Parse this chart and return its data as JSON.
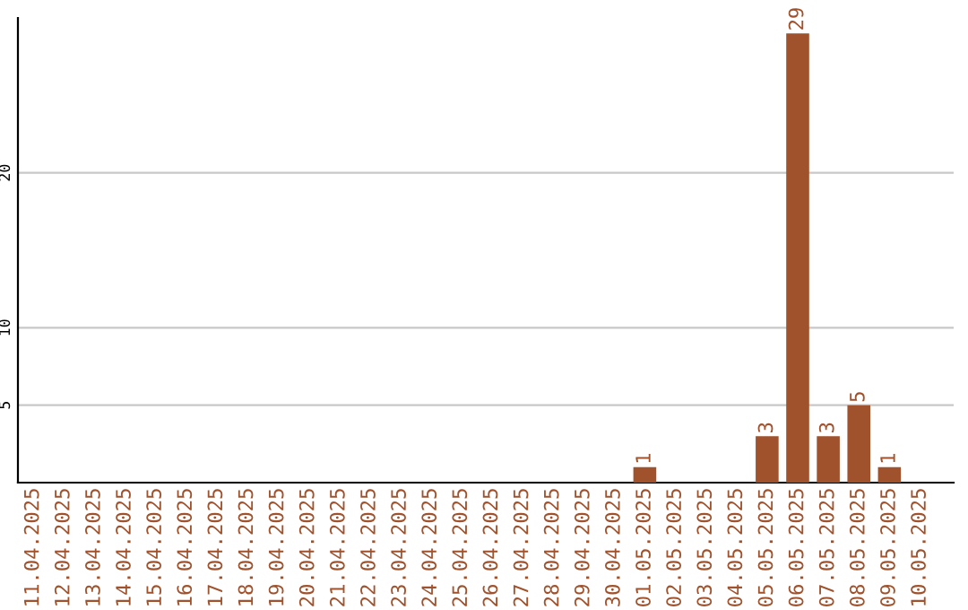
{
  "chart_data": {
    "type": "bar",
    "categories": [
      "11.04.2025",
      "12.04.2025",
      "13.04.2025",
      "14.04.2025",
      "15.04.2025",
      "16.04.2025",
      "17.04.2025",
      "18.04.2025",
      "19.04.2025",
      "20.04.2025",
      "21.04.2025",
      "22.04.2025",
      "23.04.2025",
      "24.04.2025",
      "25.04.2025",
      "26.04.2025",
      "27.04.2025",
      "28.04.2025",
      "29.04.2025",
      "30.04.2025",
      "01.05.2025",
      "02.05.2025",
      "03.05.2025",
      "04.05.2025",
      "05.05.2025",
      "06.05.2025",
      "07.05.2025",
      "08.05.2025",
      "09.05.2025",
      "10.05.2025"
    ],
    "values": [
      0,
      0,
      0,
      0,
      0,
      0,
      0,
      0,
      0,
      0,
      0,
      0,
      0,
      0,
      0,
      0,
      0,
      0,
      0,
      0,
      1,
      0,
      0,
      0,
      3,
      29,
      3,
      5,
      1,
      0
    ],
    "value_labels": [
      null,
      null,
      null,
      null,
      null,
      null,
      null,
      null,
      null,
      null,
      null,
      null,
      null,
      null,
      null,
      null,
      null,
      null,
      null,
      null,
      "1",
      null,
      null,
      null,
      "3",
      "29",
      "3",
      "5",
      "1",
      null
    ],
    "color": "#a0522d",
    "ylim": [
      0,
      30
    ],
    "yticks": [
      5,
      10,
      20
    ],
    "grid": "y"
  }
}
